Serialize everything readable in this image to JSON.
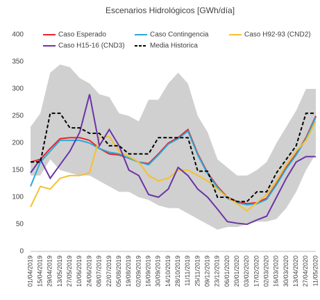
{
  "chart_data": {
    "type": "line",
    "title": "Escenarios Hidrológicos [GWh/día]",
    "categories": [
      "01/04/2019",
      "15/04/2019",
      "29/04/2019",
      "13/05/2019",
      "27/05/2019",
      "10/06/2019",
      "24/06/2019",
      "08/07/2019",
      "22/07/2019",
      "05/08/2019",
      "19/08/2019",
      "02/09/2019",
      "16/09/2019",
      "30/09/2019",
      "14/10/2019",
      "28/10/2019",
      "11/11/2019",
      "25/11/2019",
      "09/12/2019",
      "23/12/2019",
      "06/01/2020",
      "20/01/2020",
      "03/02/2020",
      "17/02/2020",
      "02/03/2020",
      "16/03/2020",
      "30/03/2020",
      "13/04/2020",
      "27/04/2020",
      "11/05/2020"
    ],
    "band": {
      "color": "#d0d0d0",
      "upper": [
        230,
        255,
        330,
        345,
        340,
        320,
        310,
        290,
        285,
        255,
        250,
        240,
        280,
        280,
        310,
        330,
        310,
        250,
        220,
        170,
        155,
        140,
        140,
        150,
        165,
        200,
        230,
        260,
        300,
        300
      ],
      "lower": [
        140,
        140,
        170,
        150,
        145,
        140,
        140,
        130,
        120,
        110,
        110,
        100,
        95,
        85,
        80,
        80,
        70,
        60,
        50,
        40,
        45,
        45,
        50,
        55,
        55,
        60,
        80,
        110,
        150,
        180
      ]
    },
    "series": [
      {
        "name": "Caso Esperado",
        "color": "#e8242a",
        "values": [
          165,
          170,
          190,
          208,
          210,
          210,
          205,
          190,
          180,
          178,
          172,
          165,
          162,
          180,
          200,
          210,
          225,
          180,
          145,
          120,
          100,
          92,
          88,
          90,
          98,
          125,
          155,
          180,
          210,
          250
        ]
      },
      {
        "name": "Caso Contingencia",
        "color": "#29a9d8",
        "values": [
          120,
          165,
          185,
          205,
          205,
          205,
          200,
          190,
          183,
          180,
          172,
          165,
          160,
          178,
          198,
          208,
          222,
          178,
          143,
          118,
          98,
          90,
          86,
          88,
          96,
          123,
          153,
          178,
          208,
          248
        ]
      },
      {
        "name": "Caso H92-93 (CND2)",
        "color": "#f4c12e",
        "values": [
          82,
          120,
          115,
          135,
          140,
          140,
          145,
          210,
          212,
          185,
          175,
          165,
          140,
          130,
          135,
          150,
          150,
          140,
          130,
          115,
          100,
          88,
          75,
          90,
          105,
          130,
          160,
          185,
          205,
          240
        ]
      },
      {
        "name": "Caso H15-16 (CND3)",
        "color": "#6a33a5",
        "values": [
          145,
          170,
          135,
          160,
          185,
          220,
          290,
          195,
          225,
          195,
          150,
          140,
          105,
          100,
          115,
          155,
          140,
          115,
          100,
          78,
          55,
          52,
          50,
          58,
          65,
          100,
          135,
          165,
          175,
          175
        ]
      },
      {
        "name": "Media Historica",
        "color": "#000000",
        "dash": true,
        "values": [
          165,
          165,
          255,
          255,
          228,
          228,
          218,
          218,
          195,
          195,
          180,
          180,
          180,
          210,
          210,
          210,
          210,
          148,
          148,
          100,
          100,
          92,
          92,
          110,
          110,
          145,
          170,
          195,
          255,
          255
        ]
      }
    ],
    "ylim": [
      0,
      400
    ],
    "yticks": [
      0,
      50,
      100,
      150,
      200,
      250,
      300,
      350,
      400
    ],
    "grid": false
  }
}
